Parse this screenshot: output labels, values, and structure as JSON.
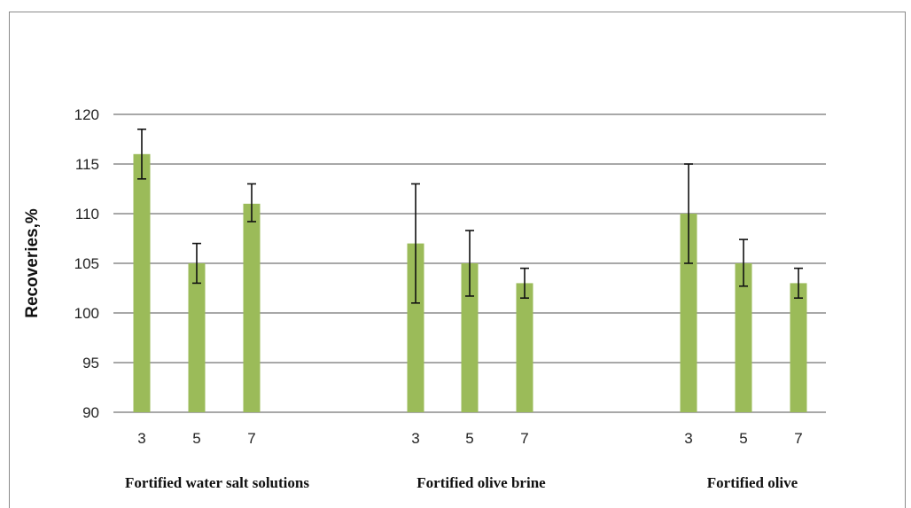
{
  "chart_data": {
    "type": "bar",
    "ylabel": "Recoveries,%",
    "ylim": [
      90,
      120
    ],
    "yticks": [
      90,
      95,
      100,
      105,
      110,
      115,
      120
    ],
    "grid": true,
    "groups": [
      {
        "label": "Fortified water salt solutions",
        "categories": [
          "3",
          "5",
          "7"
        ],
        "values": [
          116,
          105,
          111
        ],
        "err_low": [
          113.5,
          103,
          109.2
        ],
        "err_high": [
          118.5,
          107,
          113
        ]
      },
      {
        "label": "Fortified olive brine",
        "categories": [
          "3",
          "5",
          "7"
        ],
        "values": [
          107,
          105,
          103
        ],
        "err_low": [
          101,
          101.7,
          101.5
        ],
        "err_high": [
          113,
          108.3,
          104.5
        ]
      },
      {
        "label": "Fortified olive",
        "categories": [
          "3",
          "5",
          "7"
        ],
        "values": [
          110,
          105,
          103
        ],
        "err_low": [
          105,
          102.7,
          101.5
        ],
        "err_high": [
          115,
          107.4,
          104.5
        ]
      }
    ],
    "bar_color": "#9bbb59"
  }
}
